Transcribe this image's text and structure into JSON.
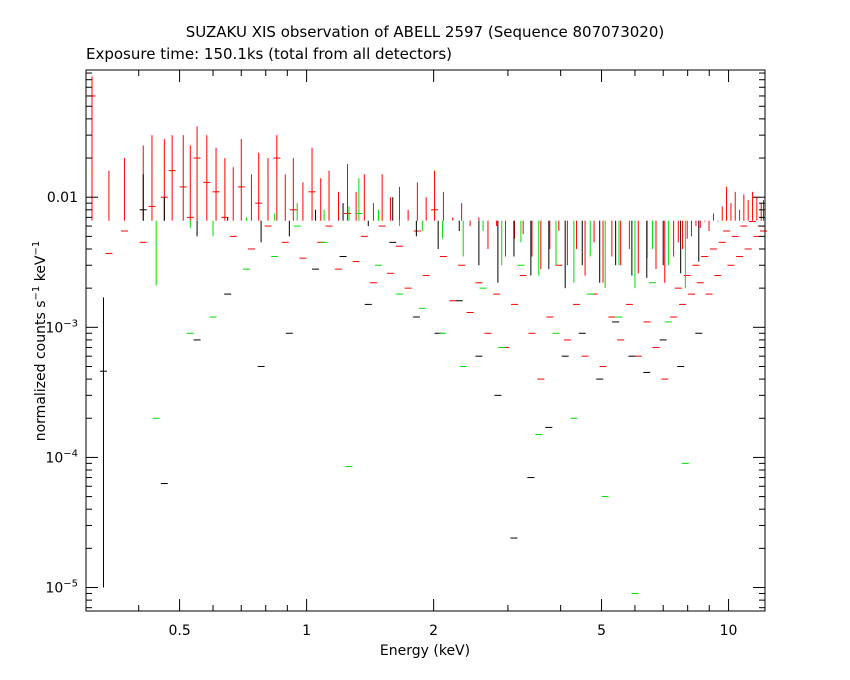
{
  "chart_data": {
    "type": "scatter",
    "title": "SUZAKU XIS observation of ABELL 2597 (Sequence 807073020)",
    "subtitle": "Exposure time: 150.1ks (total from all detectors)",
    "xlabel": "Energy (keV)",
    "ylabel": {
      "pre": "normalized counts s",
      "sup1": "−1",
      "mid": " keV",
      "sup2": "−1"
    },
    "xscale": "log",
    "yscale": "log",
    "xlim": [
      0.3,
      12.2
    ],
    "ylim": [
      6.6e-06,
      0.095
    ],
    "xticks": [
      {
        "value": 0.5,
        "label": "0.5"
      },
      {
        "value": 1,
        "label": "1"
      },
      {
        "value": 2,
        "label": "2"
      },
      {
        "value": 5,
        "label": "5"
      },
      {
        "value": 10,
        "label": "10"
      }
    ],
    "yticks": [
      {
        "value": 1e-05,
        "base": "10",
        "exp": "−5"
      },
      {
        "value": 0.0001,
        "base": "10",
        "exp": "−4"
      },
      {
        "value": 0.001,
        "base": "10",
        "exp": "−3"
      },
      {
        "value": 0.01,
        "base": "0.01",
        "exp": ""
      }
    ],
    "grid": false,
    "legend": "none",
    "series": [
      {
        "color": "#ff0000",
        "points": [
          [
            0.31,
            0.06,
            0.0066,
            0.085
          ],
          [
            0.34,
            0.0037,
            0.0066,
            0.016
          ],
          [
            0.37,
            0.0055,
            0.0066,
            0.02
          ],
          [
            0.41,
            0.0045,
            0.0066,
            0.025
          ],
          [
            0.43,
            0.0085,
            0.0066,
            0.03
          ],
          [
            0.46,
            0.01,
            0.0066,
            0.028
          ],
          [
            0.48,
            0.016,
            0.0066,
            0.03
          ],
          [
            0.51,
            0.012,
            0.0066,
            0.03
          ],
          [
            0.53,
            0.007,
            0.0066,
            0.025
          ],
          [
            0.55,
            0.02,
            0.0066,
            0.035
          ],
          [
            0.58,
            0.013,
            0.0066,
            0.03
          ],
          [
            0.61,
            0.011,
            0.0066,
            0.024
          ],
          [
            0.64,
            0.007,
            0.0066,
            0.02
          ],
          [
            0.67,
            0.005,
            0.0066,
            0.017
          ],
          [
            0.7,
            0.012,
            0.0066,
            0.028
          ],
          [
            0.74,
            0.004,
            0.0066,
            0.015
          ],
          [
            0.77,
            0.009,
            0.0066,
            0.022
          ],
          [
            0.81,
            0.006,
            0.0066,
            0.02
          ],
          [
            0.85,
            0.02,
            0.0066,
            0.03
          ],
          [
            0.89,
            0.0045,
            0.0066,
            0.015
          ],
          [
            0.93,
            0.008,
            0.0066,
            0.02
          ],
          [
            0.98,
            0.0034,
            0.0066,
            0.013
          ],
          [
            1.03,
            0.011,
            0.0066,
            0.024
          ],
          [
            1.08,
            0.0045,
            0.0066,
            0.014
          ],
          [
            1.13,
            0.006,
            0.0066,
            0.016
          ],
          [
            1.19,
            0.0028,
            0.0066,
            0.011
          ],
          [
            1.25,
            0.0075,
            0.0066,
            0.018
          ],
          [
            1.31,
            0.0032,
            0.0066,
            0.011
          ],
          [
            1.37,
            0.005,
            0.0066,
            0.015
          ],
          [
            1.44,
            0.0022,
            0.0066,
            0.009
          ],
          [
            1.51,
            0.006,
            0.0066,
            0.015
          ],
          [
            1.58,
            0.0026,
            0.0066,
            0.01
          ],
          [
            1.66,
            0.0042,
            0.0066,
            0.012
          ],
          [
            1.74,
            0.002,
            0.0066,
            0.008
          ],
          [
            1.83,
            0.0055,
            0.0066,
            0.013
          ],
          [
            1.92,
            0.0025,
            0.0066,
            0.01
          ],
          [
            2.01,
            0.008,
            0.0066,
            0.016
          ],
          [
            2.11,
            0.0035,
            0.0066,
            0.011
          ],
          [
            2.22,
            0.0016,
            0.0066,
            0.007
          ],
          [
            2.33,
            0.003,
            0.0066,
            0.009
          ],
          [
            2.44,
            0.0013,
            0.0066,
            0.006
          ],
          [
            2.56,
            0.0022,
            0.0066,
            0.007
          ],
          [
            2.69,
            0.0009,
            0.0066,
            0.004
          ],
          [
            2.82,
            0.0018,
            0.0066,
            0.006
          ],
          [
            2.96,
            0.0007,
            0.0066,
            0.0035
          ],
          [
            3.11,
            0.0015,
            0.0066,
            0.0048
          ],
          [
            3.26,
            0.0025,
            0.0066,
            0.0052
          ],
          [
            3.42,
            0.0009,
            0.0066,
            0.0035
          ],
          [
            3.59,
            0.0004,
            0.0066,
            0.0028
          ],
          [
            3.77,
            0.0012,
            0.0066,
            0.004
          ],
          [
            3.96,
            0.003,
            0.0066,
            0.0055
          ],
          [
            4.15,
            0.0008,
            0.0066,
            0.003
          ],
          [
            4.36,
            0.0015,
            0.0066,
            0.004
          ],
          [
            4.57,
            0.0006,
            0.0066,
            0.0025
          ],
          [
            4.8,
            0.0018,
            0.0066,
            0.0045
          ],
          [
            5.04,
            0.0005,
            0.0066,
            0.0022
          ],
          [
            5.29,
            0.0012,
            0.0066,
            0.0035
          ],
          [
            5.55,
            0.0008,
            0.0066,
            0.003
          ],
          [
            5.82,
            0.0015,
            0.0066,
            0.004
          ],
          [
            6.11,
            0.0006,
            0.0066,
            0.0026
          ],
          [
            6.41,
            0.0011,
            0.0066,
            0.0034
          ],
          [
            6.73,
            0.0007,
            0.0066,
            0.0028
          ],
          [
            7.06,
            0.0004,
            0.0066,
            0.0022
          ],
          [
            7.41,
            0.0012,
            0.0066,
            0.0035
          ],
          [
            7.6,
            0.002,
            0.0066,
            0.0045
          ],
          [
            7.78,
            0.0015,
            0.0066,
            0.004
          ],
          [
            7.98,
            0.0025,
            0.0066,
            0.0048
          ],
          [
            8.17,
            0.0018,
            0.0066,
            0.005
          ],
          [
            8.37,
            0.003,
            0.0066,
            0.006
          ],
          [
            8.57,
            0.0022,
            0.0066,
            0.0058
          ],
          [
            8.78,
            0.0035,
            0.0066,
            0.0065
          ],
          [
            8.99,
            0.0018,
            0.0066,
            0.0055
          ],
          [
            9.21,
            0.004,
            0.0066,
            0.0075
          ],
          [
            9.43,
            0.0025,
            0.0066,
            0.0065
          ],
          [
            9.66,
            0.0045,
            0.0066,
            0.0085
          ],
          [
            9.89,
            0.0055,
            0.0066,
            0.012
          ],
          [
            10.13,
            0.003,
            0.0066,
            0.009
          ],
          [
            10.37,
            0.005,
            0.0066,
            0.011
          ],
          [
            10.62,
            0.0035,
            0.0066,
            0.008
          ],
          [
            10.87,
            0.006,
            0.0066,
            0.0105
          ],
          [
            11.13,
            0.004,
            0.0066,
            0.0095
          ],
          [
            11.4,
            0.0065,
            0.0066,
            0.011
          ],
          [
            11.67,
            0.005,
            0.0066,
            0.01
          ],
          [
            11.95,
            0.006,
            0.0066,
            0.009
          ],
          [
            12.1,
            0.0055,
            0.0066,
            0.0095
          ]
        ]
      },
      {
        "color": "#000000",
        "points": [
          [
            0.33,
            0.00046,
            1e-05,
            0.0017
          ],
          [
            0.41,
            0.008,
            0.0066,
            0.015
          ],
          [
            0.46,
            6.3e-05,
            0.0066,
            0.01
          ],
          [
            0.55,
            0.0008,
            0.0066,
            0.005
          ],
          [
            0.65,
            0.0018,
            0.0066,
            0.007
          ],
          [
            0.78,
            0.0005,
            0.0066,
            0.0045
          ],
          [
            0.91,
            0.0009,
            0.0066,
            0.005
          ],
          [
            1.05,
            0.0028,
            0.0066,
            0.008
          ],
          [
            1.22,
            0.0035,
            0.0066,
            0.009
          ],
          [
            1.4,
            0.0015,
            0.0066,
            0.006
          ],
          [
            1.6,
            0.0045,
            0.0066,
            0.01
          ],
          [
            1.82,
            0.0012,
            0.0066,
            0.005
          ],
          [
            2.05,
            0.0009,
            0.0066,
            0.004
          ],
          [
            2.3,
            0.0016,
            0.0066,
            0.0055
          ],
          [
            2.56,
            0.0006,
            0.0066,
            0.003
          ],
          [
            2.84,
            0.0003,
            0.0066,
            0.0022
          ],
          [
            3.1,
            2.4e-05,
            0.0066,
            0.0035
          ],
          [
            3.4,
            7e-05,
            0.0066,
            0.0025
          ],
          [
            3.75,
            0.00017,
            0.0066,
            0.0028
          ],
          [
            4.1,
            0.0006,
            0.0066,
            0.002
          ],
          [
            4.5,
            0.0009,
            0.0066,
            0.003
          ],
          [
            4.95,
            0.0004,
            0.0066,
            0.0022
          ],
          [
            5.4,
            0.0011,
            0.0066,
            0.003
          ],
          [
            5.9,
            0.0006,
            0.0066,
            0.0025
          ],
          [
            6.4,
            0.00045,
            0.0066,
            0.0024
          ],
          [
            7.0,
            0.0008,
            0.0066,
            0.003
          ],
          [
            7.7,
            0.0005,
            0.0066,
            0.0026
          ],
          [
            8.5,
            0.0009,
            0.0066,
            0.0032
          ]
        ]
      },
      {
        "color": "#00dd00",
        "points": [
          [
            0.44,
            0.0002,
            0.0066,
            0.0021
          ],
          [
            0.53,
            0.0009,
            0.0066,
            0.0058
          ],
          [
            0.6,
            0.0012,
            0.0066,
            0.005
          ],
          [
            0.72,
            0.0028,
            0.0066,
            0.007
          ],
          [
            0.84,
            0.0035,
            0.0066,
            0.0075
          ],
          [
            0.95,
            0.006,
            0.0066,
            0.009
          ],
          [
            1.1,
            0.0045,
            0.0066,
            0.008
          ],
          [
            1.26,
            8.5e-05,
            0.0066,
            0.0085
          ],
          [
            1.33,
            0.0075,
            0.0066,
            0.014
          ],
          [
            1.48,
            0.003,
            0.0066,
            0.008
          ],
          [
            1.66,
            0.0018,
            0.0066,
            0.006
          ],
          [
            1.88,
            0.0014,
            0.0066,
            0.0055
          ],
          [
            2.1,
            0.0009,
            0.0066,
            0.0048
          ],
          [
            2.35,
            0.0005,
            0.0066,
            0.0035
          ],
          [
            2.62,
            0.002,
            0.0066,
            0.0055
          ],
          [
            2.9,
            0.0007,
            0.0066,
            0.003
          ],
          [
            3.22,
            0.003,
            0.0066,
            0.0045
          ],
          [
            3.55,
            0.00015,
            0.0066,
            0.0025
          ],
          [
            3.9,
            0.0009,
            0.0066,
            0.003
          ],
          [
            4.3,
            0.0002,
            0.0066,
            0.0022
          ],
          [
            4.7,
            0.0018,
            0.0066,
            0.0035
          ],
          [
            5.1,
            5e-05,
            0.0066,
            0.002
          ],
          [
            5.5,
            0.0012,
            0.0066,
            0.003
          ],
          [
            6.0,
            9e-06,
            0.0066,
            0.002
          ],
          [
            6.6,
            0.0022,
            0.0066,
            0.004
          ],
          [
            7.2,
            0.0011,
            0.0066,
            0.003
          ],
          [
            7.9,
            9e-05,
            0.0066,
            0.002
          ]
        ]
      }
    ]
  }
}
